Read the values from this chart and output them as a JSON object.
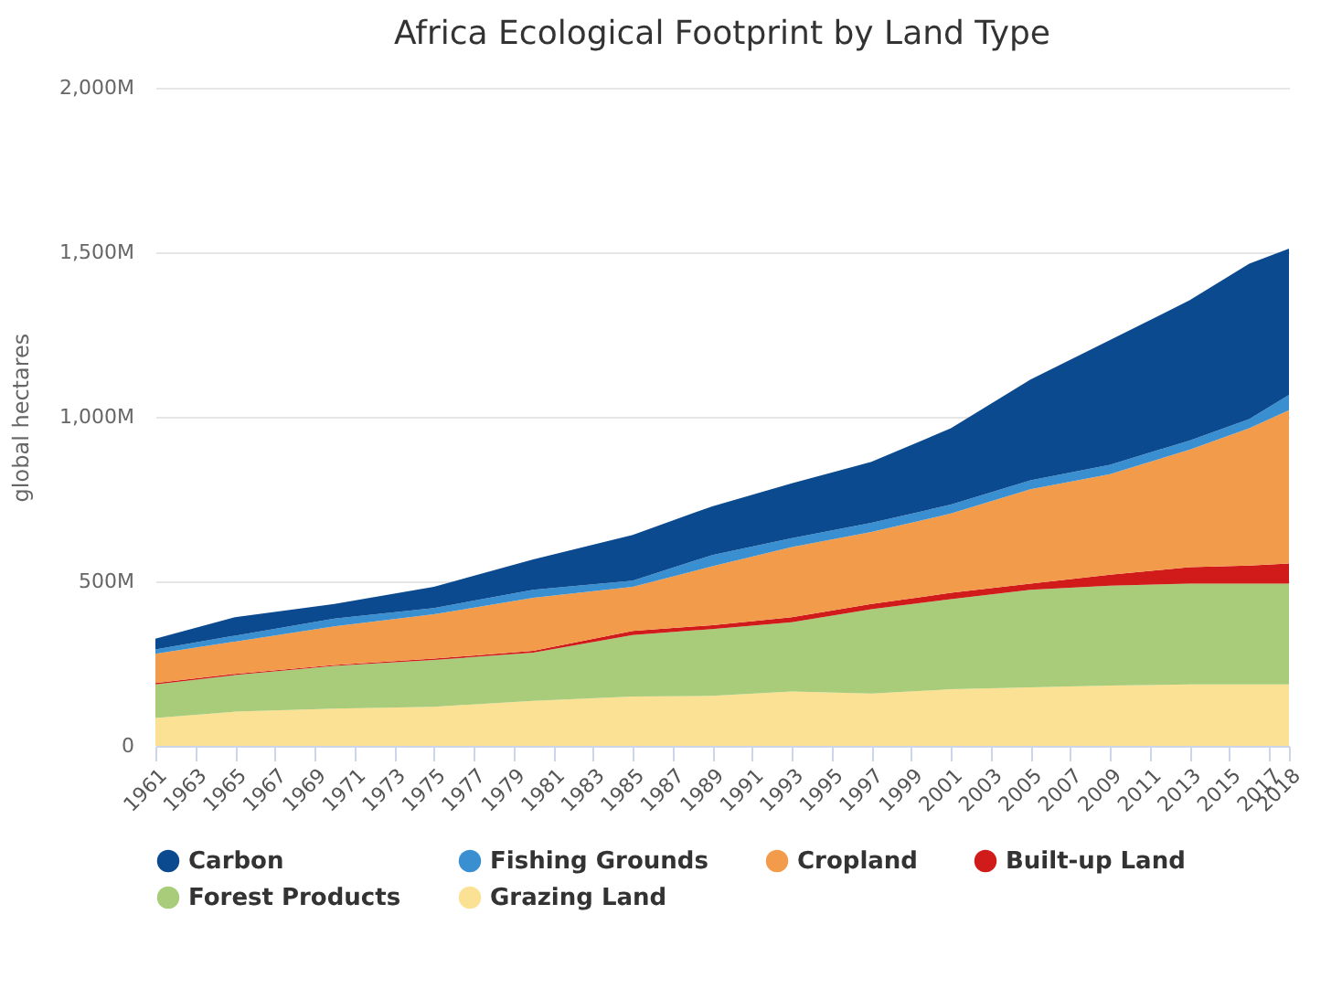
{
  "chart_data": {
    "type": "area",
    "title": "Africa Ecological Footprint by Land Type",
    "ylabel": "global hectares",
    "stacked": true,
    "x": [
      1961,
      1965,
      1970,
      1975,
      1980,
      1985,
      1989,
      1993,
      1997,
      2001,
      2005,
      2009,
      2013,
      2016,
      2018
    ],
    "series": [
      {
        "name": "Grazing Land",
        "color": "#fbe193",
        "values": [
          85,
          104,
          113,
          119,
          137,
          150,
          152,
          165,
          159,
          172,
          178,
          183,
          187,
          187,
          187
        ]
      },
      {
        "name": "Forest Products",
        "color": "#a8cc7a",
        "values": [
          102,
          111,
          130,
          142,
          146,
          187,
          203,
          211,
          256,
          274,
          296,
          304,
          306,
          306,
          306
        ]
      },
      {
        "name": "Built-up Land",
        "color": "#d11a1a",
        "values": [
          4,
          4,
          3,
          4,
          6,
          12,
          12,
          15,
          16,
          19,
          19,
          33,
          50,
          55,
          61
        ]
      },
      {
        "name": "Cropland",
        "color": "#f29b4b",
        "values": [
          89,
          98,
          117,
          135,
          161,
          134,
          179,
          213,
          219,
          241,
          287,
          306,
          357,
          417,
          466
        ]
      },
      {
        "name": "Fishing Grounds",
        "color": "#3a8fd1",
        "values": [
          13,
          18,
          24,
          19,
          24,
          19,
          34,
          27,
          28,
          27,
          27,
          28,
          28,
          28,
          47
        ]
      },
      {
        "name": "Carbon",
        "color": "#0b4a8f",
        "values": [
          33,
          56,
          44,
          64,
          93,
          139,
          148,
          167,
          185,
          232,
          306,
          379,
          426,
          472,
          444
        ]
      }
    ],
    "xlim": [
      1961,
      2018
    ],
    "xticks": [
      1961,
      1963,
      1965,
      1967,
      1969,
      1971,
      1973,
      1975,
      1977,
      1979,
      1981,
      1983,
      1985,
      1987,
      1989,
      1991,
      1993,
      1995,
      1997,
      1999,
      2001,
      2003,
      2005,
      2007,
      2009,
      2011,
      2013,
      2015,
      2017,
      2018
    ],
    "ylim": [
      0,
      2000
    ],
    "yticks": [
      0,
      {
        "value": 500,
        "label": "500M"
      },
      {
        "value": 1000,
        "label": "1,000M"
      },
      {
        "value": 1500,
        "label": "1,500M"
      },
      {
        "value": 2000,
        "label": "2,000M"
      }
    ],
    "grid": "y",
    "legend": "bottom"
  }
}
